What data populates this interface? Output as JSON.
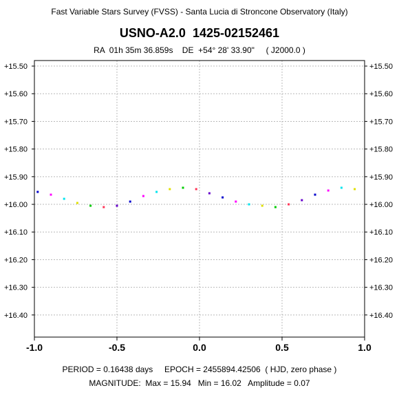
{
  "header": {
    "survey": "Fast Variable Stars Survey (FVSS) - Santa Lucia di Stroncone Observatory (Italy)",
    "object": "USNO-A2.0  1425-02152461",
    "coords": "RA  01h 35m 36.859s    DE  +54° 28' 33.90\"     ( J2000.0 )"
  },
  "footer": {
    "period_line": "PERIOD = 0.16438 days     EPOCH = 2455894.42506  ( HJD, zero phase )",
    "magnitude_line": "MAGNITUDE:  Max = 15.94   Min = 16.02   Amplitude = 0.07"
  },
  "colors": [
    "#0000cc",
    "#ff00ff",
    "#00e5ee",
    "#e0e000",
    "#00cc00",
    "#ff3355",
    "#6600cc"
  ],
  "chart_data": {
    "type": "scatter",
    "xlim": [
      -1.0,
      1.0
    ],
    "ylim": [
      15.48,
      16.48
    ],
    "y_inverted": true,
    "grid": true,
    "x_ticks": [
      -1.0,
      -0.5,
      0.0,
      0.5,
      1.0
    ],
    "x_tick_labels": [
      "-1.0",
      "-0.5",
      "0.0",
      "0.5",
      "1.0"
    ],
    "y_ticks": [
      15.5,
      15.6,
      15.7,
      15.8,
      15.9,
      16.0,
      16.1,
      16.2,
      16.3,
      16.4
    ],
    "y_tick_labels": [
      "+15.50",
      "+15.60",
      "+15.70",
      "+15.80",
      "+15.90",
      "+16.00",
      "+16.10",
      "+16.20",
      "+16.30",
      "+16.40"
    ],
    "series": [
      {
        "phase": [
          -0.98,
          -0.9,
          -0.82,
          -0.74,
          -0.66,
          -0.58,
          -0.5,
          -0.42,
          -0.34,
          -0.26,
          -0.18,
          -0.1,
          -0.02,
          0.06,
          0.14,
          0.22,
          0.3,
          0.38,
          0.46,
          0.54,
          0.62,
          0.7,
          0.78,
          0.86,
          0.94
        ],
        "mag": [
          15.955,
          15.965,
          15.98,
          15.995,
          16.005,
          16.01,
          16.005,
          15.99,
          15.97,
          15.955,
          15.945,
          15.94,
          15.945,
          15.96,
          15.975,
          15.99,
          16.0,
          16.005,
          16.01,
          16.0,
          15.985,
          15.965,
          15.95,
          15.94,
          15.945
        ]
      }
    ]
  }
}
